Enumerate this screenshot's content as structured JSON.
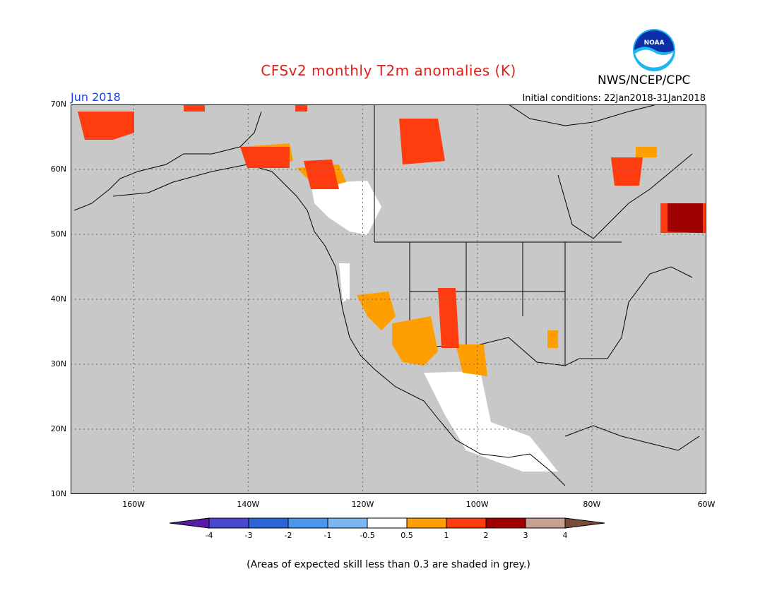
{
  "header": {
    "title": "CFSv2 monthly T2m anomalies (K)",
    "agency": "NWS/NCEP/CPC",
    "month": "Jun 2018",
    "initial_conditions": "Initial conditions: 22Jan2018-31Jan2018"
  },
  "logo": {
    "text": "NOAA",
    "icon": "noaa-logo-icon"
  },
  "map": {
    "projection": "lat-lon",
    "lon_range": [
      -171,
      -60
    ],
    "lat_range": [
      10,
      70
    ],
    "lat_ticks": [
      "10N",
      "20N",
      "30N",
      "40N",
      "50N",
      "60N",
      "70N"
    ],
    "lon_ticks": [
      "160W",
      "140W",
      "120W",
      "100W",
      "80W",
      "60W"
    ],
    "lat_values": [
      10,
      20,
      30,
      40,
      50,
      60,
      70
    ],
    "lon_values": [
      -160,
      -140,
      -120,
      -100,
      -80,
      -60
    ],
    "background_color": "#c8c8c8",
    "anomaly_regions": [
      {
        "name": "Alaska west coast",
        "lon": -166,
        "lat": 66,
        "level": "1-2"
      },
      {
        "name": "Canadian Arctic islands",
        "lon": -105,
        "lat": 65,
        "level": "1-2"
      },
      {
        "name": "Yukon/BC",
        "lon": -133,
        "lat": 60,
        "level": "0.5-1"
      },
      {
        "name": "Interior BC / Alberta",
        "lon": -124,
        "lat": 54,
        "level": "-0.5-0.5"
      },
      {
        "name": "US Southwest",
        "lon": -113,
        "lat": 36,
        "level": "0.5-1"
      },
      {
        "name": "Four Corners / New Mexico",
        "lon": -106,
        "lat": 35,
        "level": "1-2"
      },
      {
        "name": "Mexico",
        "lon": -102,
        "lat": 22,
        "level": "-0.5-0.5"
      },
      {
        "name": "Hudson Strait",
        "lon": -75,
        "lat": 61,
        "level": "1-2"
      },
      {
        "name": "Labrador",
        "lon": -63,
        "lat": 53,
        "level": "2-3"
      }
    ]
  },
  "colorbar": {
    "tick_labels": [
      "-4",
      "-3",
      "-2",
      "-1",
      "-0.5",
      "0.5",
      "1",
      "2",
      "3",
      "4"
    ],
    "colors": [
      "#5a1aa8",
      "#4a47d0",
      "#2a66d6",
      "#4a96ea",
      "#7cb6f2",
      "#ffffff",
      "#ff9e00",
      "#ff3b10",
      "#a00000",
      "#c8a090",
      "#7a4b3a"
    ]
  },
  "footnote": "(Areas of expected skill less than 0.3 are shaded in grey.)"
}
